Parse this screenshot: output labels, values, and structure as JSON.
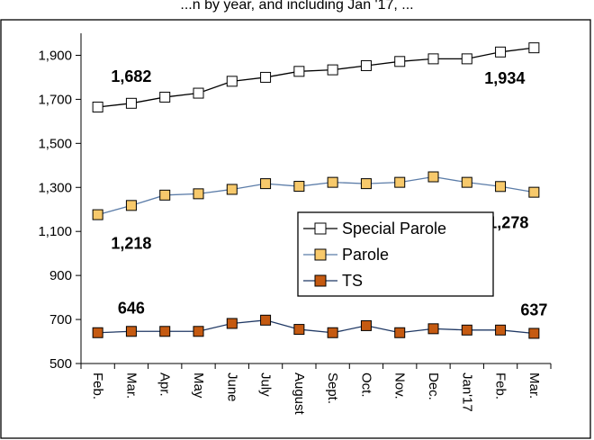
{
  "chart_data": {
    "type": "line",
    "title_fragment": "...n by year, and including Jan '17, ...",
    "categories": [
      "Feb.",
      "Mar.",
      "Apr.",
      "May",
      "June",
      "July",
      "August",
      "Sept.",
      "Oct.",
      "Nov.",
      "Dec.",
      "Jan'17",
      "Feb.",
      "Mar."
    ],
    "ylim": [
      500,
      2000
    ],
    "yticks": [
      "500",
      "700",
      "900",
      "1,100",
      "1,300",
      "1,500",
      "1,700",
      "1,900"
    ],
    "ytick_values": [
      500,
      700,
      900,
      1100,
      1300,
      1500,
      1700,
      1900
    ],
    "grid": false,
    "legend_position": "center-right",
    "series": [
      {
        "name": "Special Parole",
        "marker_color": "#ffffff",
        "line_color": "#000000",
        "values": [
          1665,
          1682,
          1710,
          1728,
          1782,
          1800,
          1827,
          1834,
          1853,
          1872,
          1884,
          1884,
          1915,
          1934
        ]
      },
      {
        "name": "Parole",
        "marker_color": "#f7c96b",
        "line_color": "#5b7ca8",
        "values": [
          1176,
          1218,
          1265,
          1271,
          1291,
          1317,
          1305,
          1323,
          1317,
          1323,
          1348,
          1323,
          1304,
          1278
        ]
      },
      {
        "name": "TS",
        "marker_color": "#c55a11",
        "line_color": "#1f3864",
        "values": [
          640,
          646,
          646,
          646,
          682,
          697,
          655,
          640,
          672,
          640,
          658,
          652,
          652,
          637
        ]
      }
    ],
    "data_labels": [
      {
        "series": 0,
        "index": 1,
        "text": "1,682"
      },
      {
        "series": 0,
        "index": 13,
        "text": "1,934"
      },
      {
        "series": 1,
        "index": 1,
        "text": "1,218"
      },
      {
        "series": 1,
        "index": 13,
        "text": "1,278"
      },
      {
        "series": 2,
        "index": 1,
        "text": "646"
      },
      {
        "series": 2,
        "index": 13,
        "text": "637"
      }
    ]
  }
}
